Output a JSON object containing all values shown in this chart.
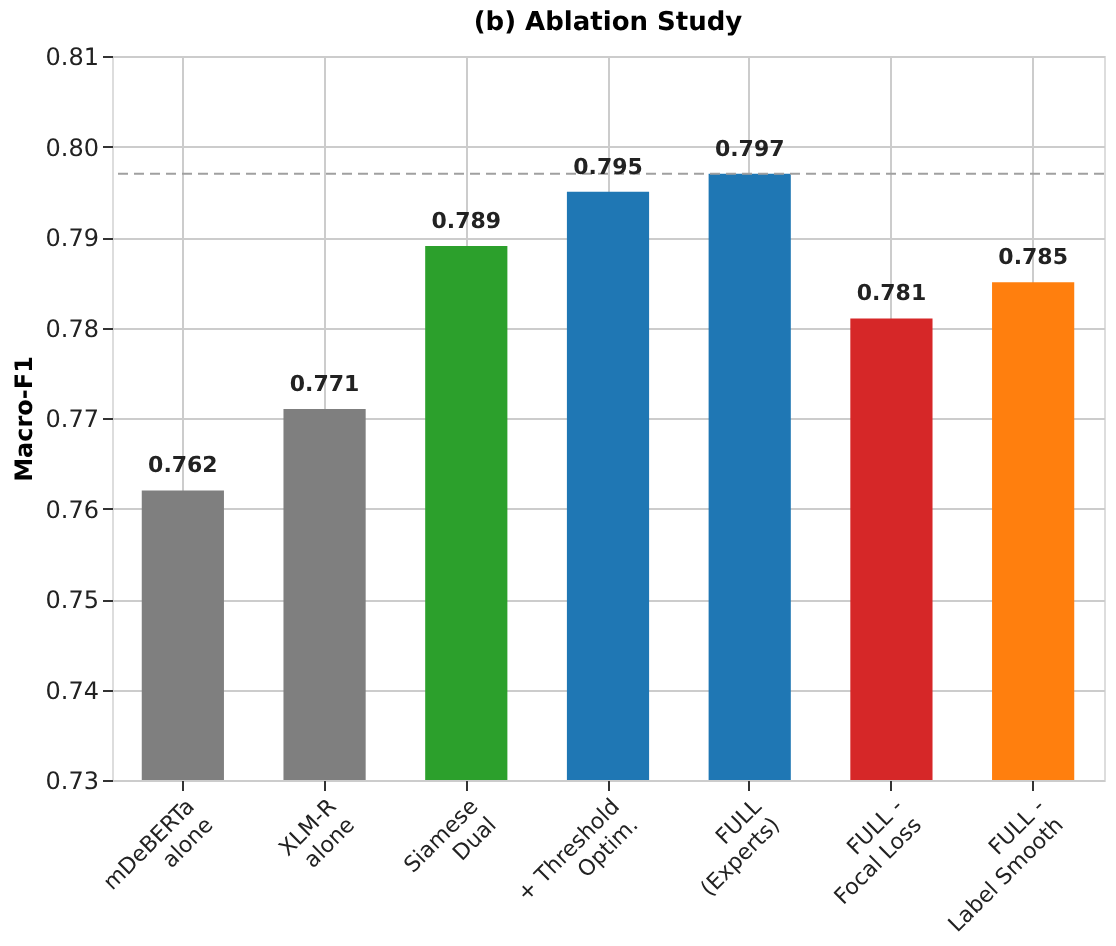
{
  "chart_data": {
    "type": "bar",
    "title": "(b) Ablation Study",
    "ylabel": "Macro-F1",
    "categories": [
      "mDeBERTa\nalone",
      "XLM-R\nalone",
      "Siamese\nDual",
      "+ Threshold\nOptim.",
      "FULL\n(Experts)",
      "FULL -\nFocal Loss",
      "FULL -\nLabel Smooth"
    ],
    "values": [
      0.762,
      0.771,
      0.789,
      0.795,
      0.797,
      0.781,
      0.785
    ],
    "colors": [
      "#7f7f7f",
      "#7f7f7f",
      "#2ca02c",
      "#1f77b4",
      "#1f77b4",
      "#d62728",
      "#ff7f0e"
    ],
    "ylim": [
      0.73,
      0.81
    ],
    "yticks": [
      0.73,
      0.74,
      0.75,
      0.76,
      0.77,
      0.78,
      0.79,
      {
        "value": 0.8,
        "label": "0.80"
      },
      0.81
    ],
    "ref_lines": [
      {
        "axis": "y",
        "value": 0.797,
        "color": "#a0a0a0",
        "line_style": "dashed"
      }
    ],
    "data_labels": true,
    "grid": true
  }
}
